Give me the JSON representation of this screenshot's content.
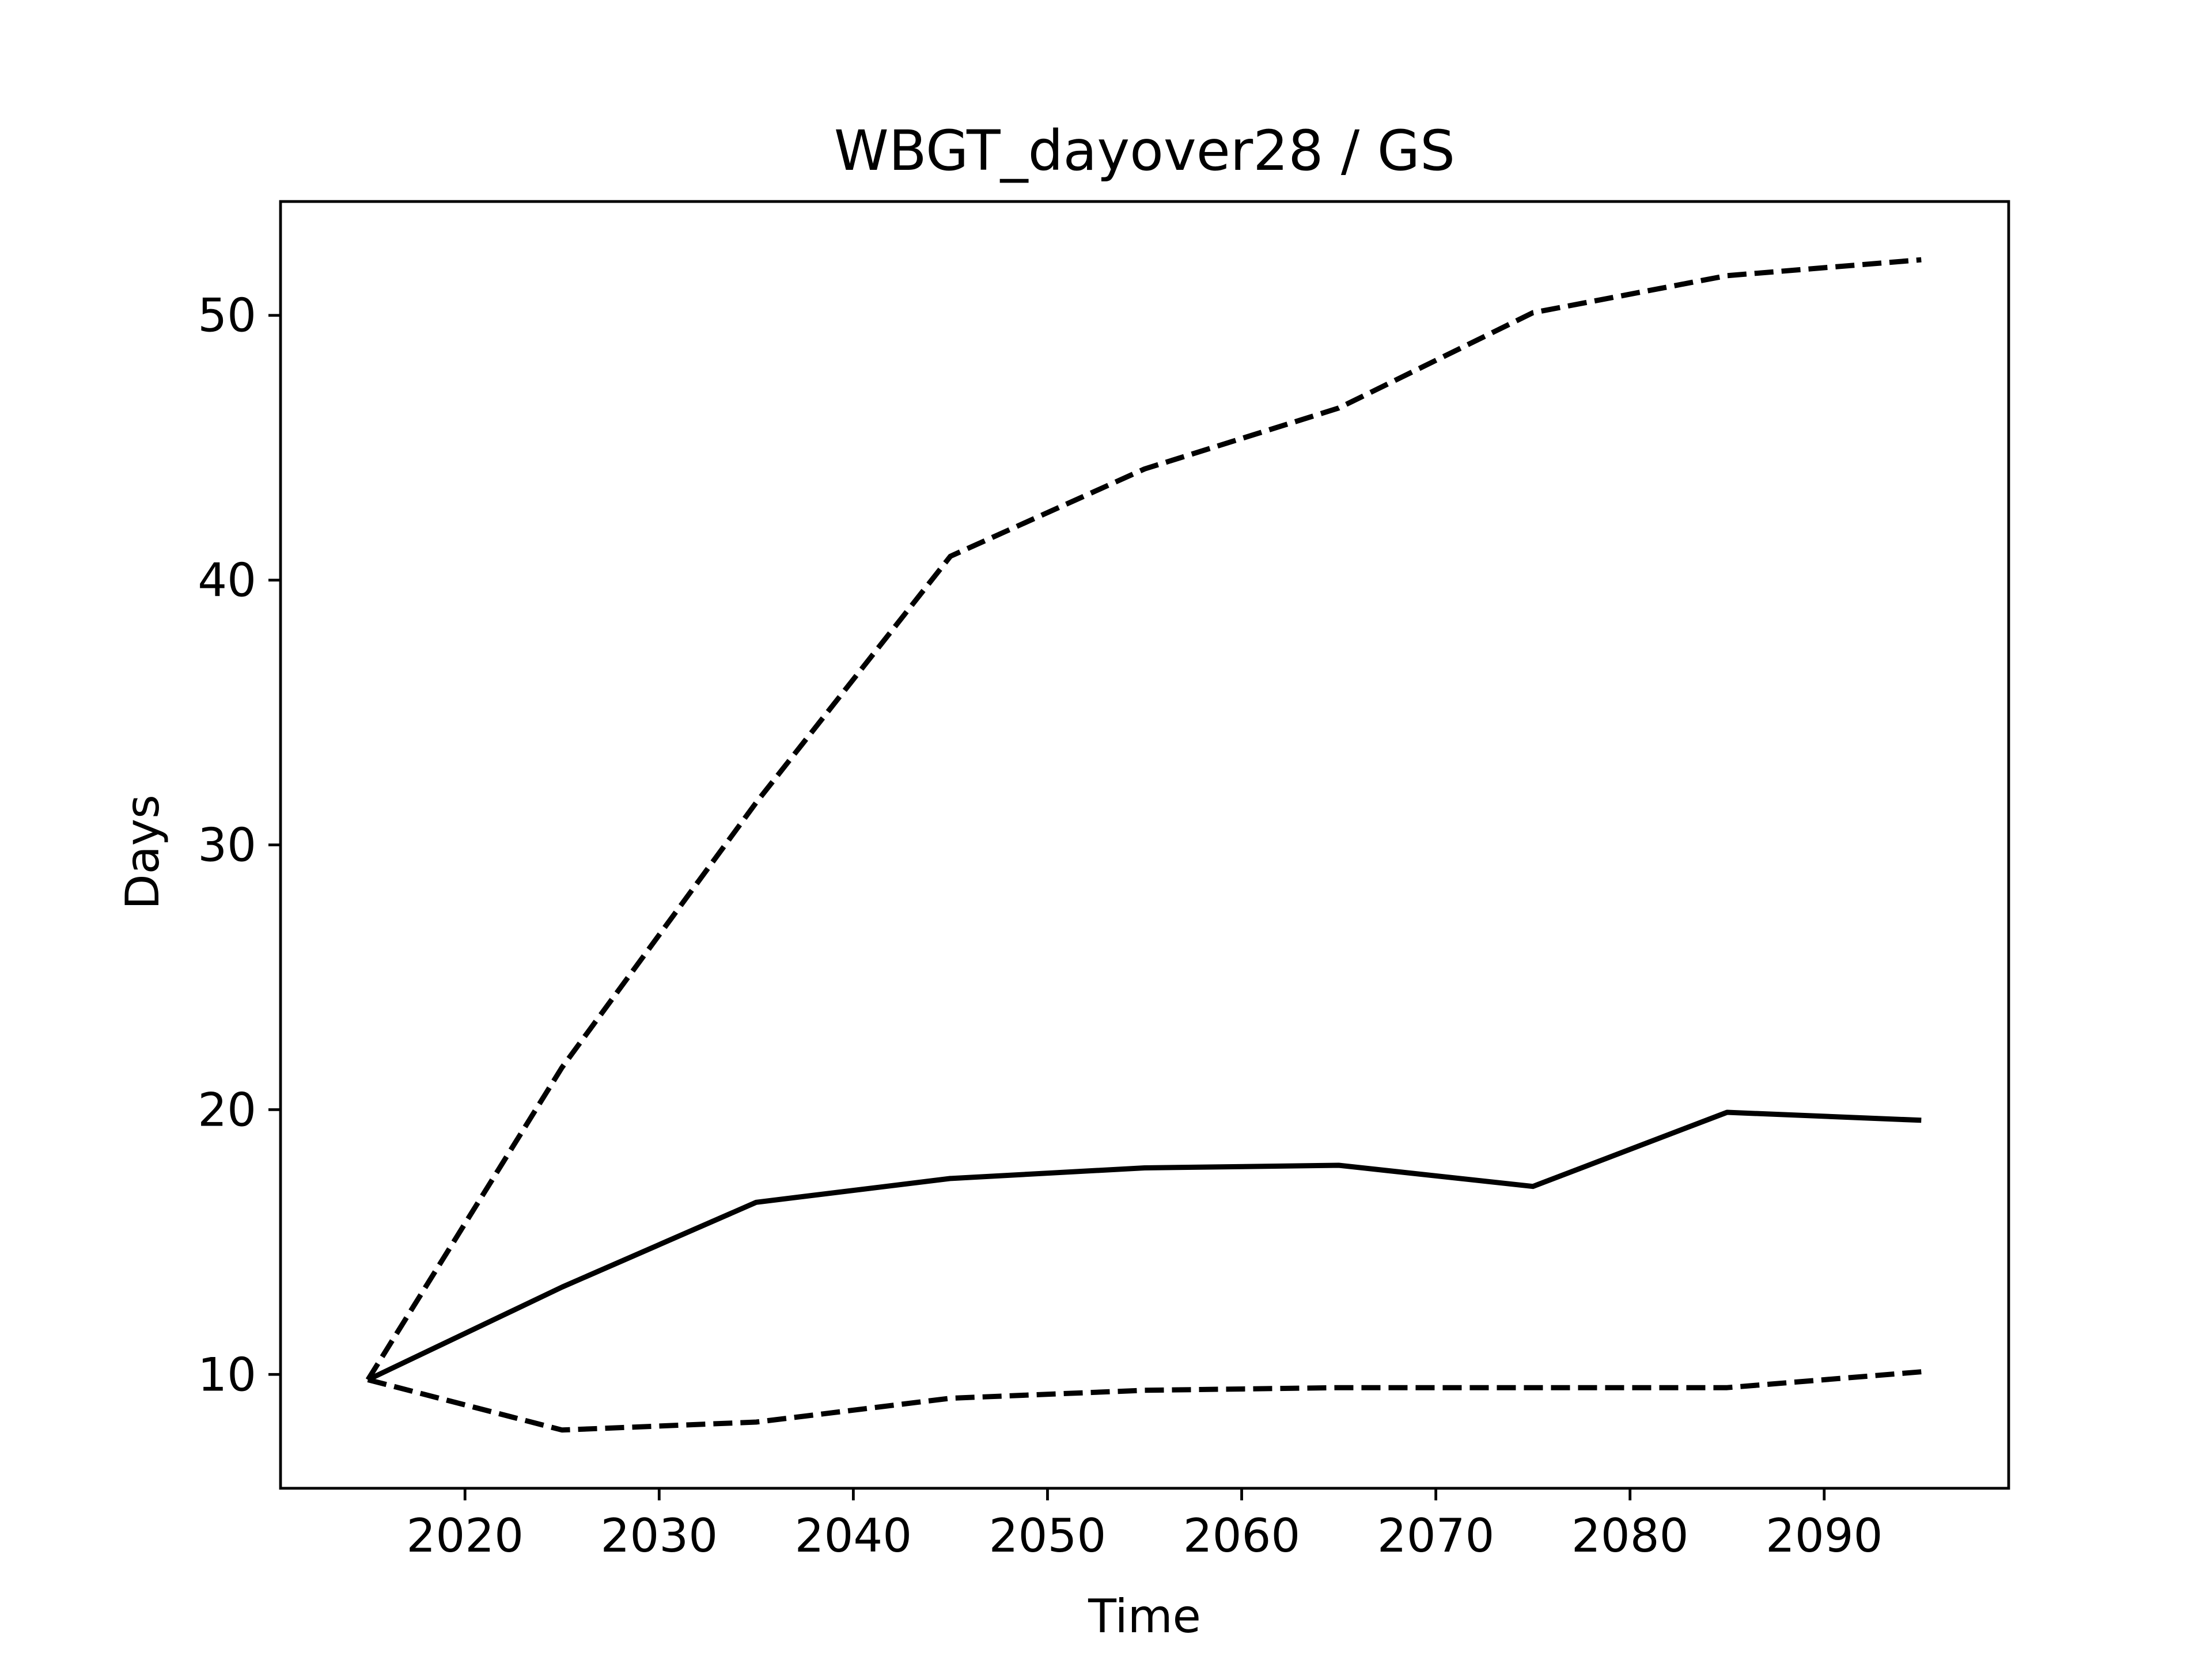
{
  "chart_data": {
    "type": "line",
    "title": "WBGT_dayover28 / GS",
    "xlabel": "Time",
    "ylabel": "Days",
    "xlim": [
      2010.5,
      2099.5
    ],
    "ylim": [
      5.7,
      54.3
    ],
    "xticks": [
      2020,
      2030,
      2040,
      2050,
      2060,
      2070,
      2080,
      2090
    ],
    "yticks": [
      10,
      20,
      30,
      40,
      50
    ],
    "x": [
      2015,
      2025,
      2035,
      2045,
      2055,
      2065,
      2075,
      2085,
      2095
    ],
    "grid": false,
    "series": [
      {
        "values": [
          9.8,
          13.3,
          16.5,
          17.4,
          17.8,
          17.9,
          17.1,
          19.9,
          19.6
        ],
        "style": "solid",
        "color": "#000000"
      },
      {
        "values": [
          9.8,
          21.6,
          31.6,
          40.9,
          44.2,
          46.5,
          50.1,
          51.5,
          52.1
        ],
        "style": "dashed",
        "color": "#000000"
      },
      {
        "values": [
          9.8,
          7.9,
          8.2,
          9.1,
          9.4,
          9.5,
          9.5,
          9.5,
          10.1
        ],
        "style": "dashed",
        "color": "#000000"
      }
    ]
  }
}
